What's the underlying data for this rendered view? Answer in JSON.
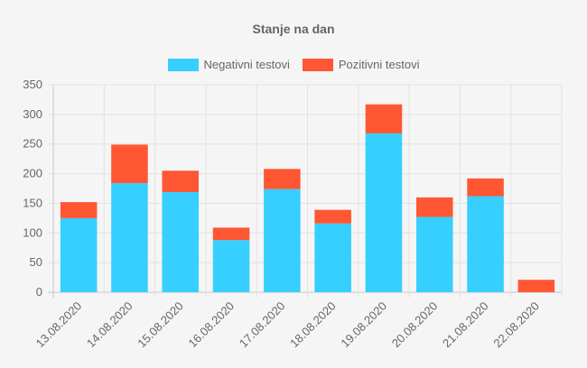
{
  "chart_data": {
    "type": "bar",
    "stacked": true,
    "title": "Stanje na dan",
    "categories": [
      "13.08.2020",
      "14.08.2020",
      "15.08.2020",
      "16.08.2020",
      "17.08.2020",
      "18.08.2020",
      "19.08.2020",
      "20.08.2020",
      "21.08.2020",
      "22.08.2020"
    ],
    "series": [
      {
        "name": "Negativni testovi",
        "color": "#36cfff",
        "values": [
          125,
          184,
          169,
          88,
          174,
          116,
          268,
          127,
          162,
          0
        ]
      },
      {
        "name": "Pozitivni testovi",
        "color": "#ff5733",
        "values": [
          27,
          65,
          36,
          21,
          34,
          23,
          49,
          33,
          30,
          21
        ]
      }
    ],
    "ylim": [
      0,
      350
    ],
    "yticks": [
      0,
      50,
      100,
      150,
      200,
      250,
      300,
      350
    ],
    "grid": true,
    "legend": "top"
  }
}
